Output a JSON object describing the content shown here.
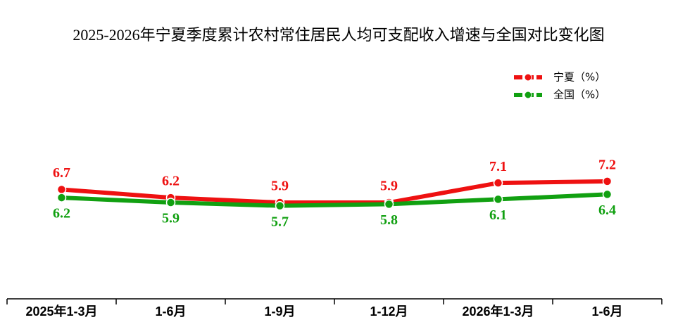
{
  "chart_data": {
    "type": "line",
    "title": "2025-2026年宁夏季度累计农村常住居民人均可支配收入增速与全国对比变化图",
    "categories": [
      "2025年1-3月",
      "1-6月",
      "1-9月",
      "1-12月",
      "2026年1-3月",
      "1-6月"
    ],
    "series": [
      {
        "name": "宁夏（%）",
        "color": "#ee1111",
        "values": [
          6.7,
          6.2,
          5.9,
          5.9,
          7.1,
          7.2
        ]
      },
      {
        "name": "全国（%）",
        "color": "#11a011",
        "values": [
          6.2,
          5.9,
          5.7,
          5.8,
          6.1,
          6.4
        ]
      }
    ],
    "ylim": [
      0,
      14
    ]
  }
}
